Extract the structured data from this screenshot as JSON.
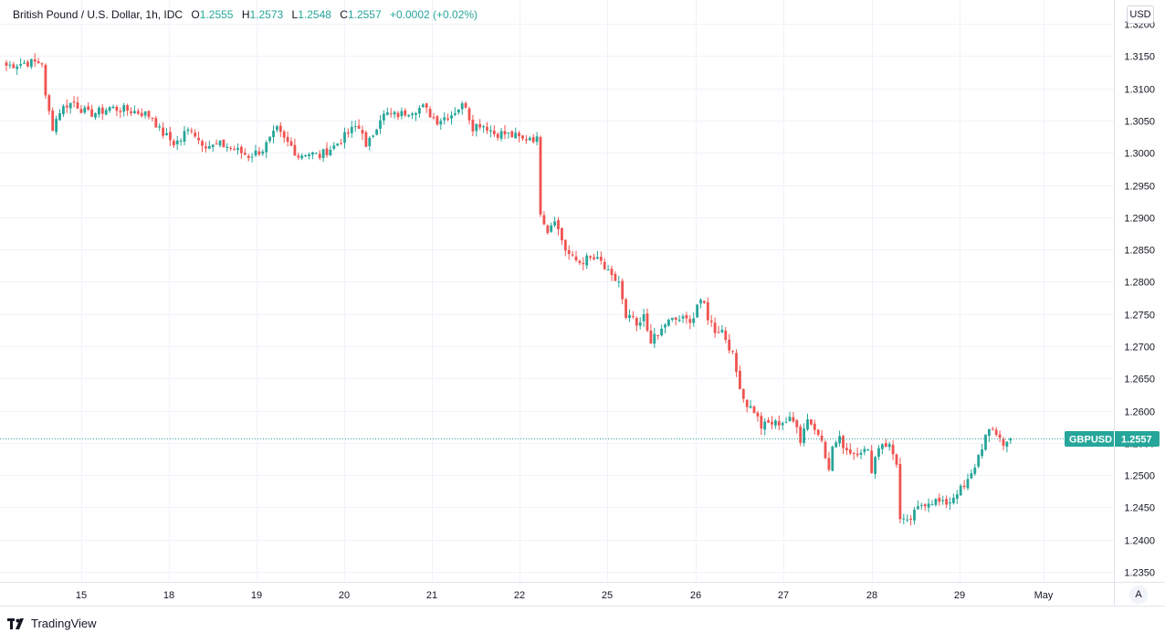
{
  "legend": {
    "symbol": "British Pound / U.S. Dollar, 1h, IDC",
    "o_label": "O",
    "o_value": "1.2555",
    "h_label": "H",
    "h_value": "1.2573",
    "l_label": "L",
    "l_value": "1.2548",
    "c_label": "C",
    "c_value": "1.2557",
    "change": "+0.0002 (+0.02%)"
  },
  "currency_button": "USD",
  "auto_button": "A",
  "price_tag": {
    "symbol": "GBPUSD",
    "value": "1.2557"
  },
  "footer": {
    "brand": "TradingView",
    "logo_icon": "tradingview-logo-icon"
  },
  "colors": {
    "up": "#26a69a",
    "down": "#ef5350",
    "grid": "#f0f3fa",
    "tag_bg": "#26a69a"
  },
  "chart_data": {
    "type": "candlestick",
    "title": "British Pound / U.S. Dollar, 1h, IDC",
    "y_ticks": [
      "1.3200",
      "1.3150",
      "1.3100",
      "1.3050",
      "1.3000",
      "1.2950",
      "1.2900",
      "1.2850",
      "1.2800",
      "1.2750",
      "1.2700",
      "1.2650",
      "1.2600",
      "1.2550",
      "1.2500",
      "1.2450",
      "1.2400",
      "1.2350"
    ],
    "x_ticks": [
      "15",
      "18",
      "19",
      "20",
      "21",
      "22",
      "25",
      "26",
      "27",
      "28",
      "29",
      "May"
    ],
    "ylim": [
      1.2335,
      1.3225
    ],
    "close_path": [
      [
        0,
        1.3135
      ],
      [
        6,
        1.314
      ],
      [
        10,
        1.314
      ],
      [
        11,
        1.3085
      ],
      [
        13,
        1.304
      ],
      [
        15,
        1.3065
      ],
      [
        17,
        1.3075
      ],
      [
        19,
        1.3078
      ],
      [
        21,
        1.3068
      ],
      [
        23,
        1.306
      ],
      [
        25,
        1.3062
      ],
      [
        27,
        1.3065
      ],
      [
        29,
        1.307
      ],
      [
        31,
        1.3068
      ],
      [
        33,
        1.3067
      ],
      [
        35,
        1.3065
      ],
      [
        37,
        1.3063
      ],
      [
        39,
        1.306
      ],
      [
        41,
        1.3055
      ],
      [
        43,
        1.3035
      ],
      [
        45,
        1.3025
      ],
      [
        47,
        1.3015
      ],
      [
        49,
        1.302
      ],
      [
        50,
        1.303
      ],
      [
        52,
        1.3038
      ],
      [
        54,
        1.302
      ],
      [
        56,
        1.3013
      ],
      [
        58,
        1.301
      ],
      [
        60,
        1.3012
      ],
      [
        62,
        1.301
      ],
      [
        64,
        1.3005
      ],
      [
        66,
        1.3
      ],
      [
        68,
        1.2995
      ],
      [
        70,
        1.3
      ],
      [
        72,
        1.3005
      ],
      [
        74,
        1.302
      ],
      [
        76,
        1.3035
      ],
      [
        78,
        1.302
      ],
      [
        80,
        1.301
      ],
      [
        82,
        1.2995
      ],
      [
        84,
        1.3
      ],
      [
        86,
        1.2998
      ],
      [
        88,
        1.2995
      ],
      [
        90,
        1.3003
      ],
      [
        92,
        1.301
      ],
      [
        94,
        1.302
      ],
      [
        96,
        1.303
      ],
      [
        98,
        1.304
      ],
      [
        100,
        1.3035
      ],
      [
        101,
        1.3005
      ],
      [
        103,
        1.303
      ],
      [
        105,
        1.3055
      ],
      [
        107,
        1.306
      ],
      [
        109,
        1.3058
      ],
      [
        111,
        1.306
      ],
      [
        113,
        1.3065
      ],
      [
        115,
        1.3068
      ],
      [
        117,
        1.307
      ],
      [
        119,
        1.306
      ],
      [
        121,
        1.305
      ],
      [
        123,
        1.3055
      ],
      [
        125,
        1.306
      ],
      [
        127,
        1.307
      ],
      [
        129,
        1.3075
      ],
      [
        130,
        1.3055
      ],
      [
        131,
        1.304
      ],
      [
        133,
        1.3045
      ],
      [
        135,
        1.304
      ],
      [
        137,
        1.303
      ],
      [
        139,
        1.303
      ],
      [
        141,
        1.3028
      ],
      [
        143,
        1.3025
      ],
      [
        145,
        1.302
      ],
      [
        147,
        1.3025
      ],
      [
        149,
        1.302
      ],
      [
        149.5,
        1.2975
      ],
      [
        150,
        1.291
      ],
      [
        152,
        1.288
      ],
      [
        154,
        1.29
      ],
      [
        155,
        1.288
      ],
      [
        157,
        1.285
      ],
      [
        159,
        1.2835
      ],
      [
        161,
        1.283
      ],
      [
        163,
        1.2835
      ],
      [
        165,
        1.2835
      ],
      [
        167,
        1.283
      ],
      [
        168,
        1.282
      ],
      [
        170,
        1.2805
      ],
      [
        172,
        1.28
      ],
      [
        173,
        1.277
      ],
      [
        174,
        1.274
      ],
      [
        176,
        1.2745
      ],
      [
        177,
        1.2725
      ],
      [
        179,
        1.2745
      ],
      [
        180,
        1.2725
      ],
      [
        181,
        1.271
      ],
      [
        183,
        1.2715
      ],
      [
        185,
        1.2735
      ],
      [
        187,
        1.274
      ],
      [
        189,
        1.2742
      ],
      [
        191,
        1.274
      ],
      [
        193,
        1.2745
      ],
      [
        194,
        1.2765
      ],
      [
        196,
        1.2765
      ],
      [
        197,
        1.2745
      ],
      [
        199,
        1.2725
      ],
      [
        201,
        1.2725
      ],
      [
        203,
        1.27
      ],
      [
        204,
        1.2685
      ],
      [
        205,
        1.266
      ],
      [
        207,
        1.262
      ],
      [
        208,
        1.261
      ],
      [
        210,
        1.26
      ],
      [
        212,
        1.2575
      ],
      [
        214,
        1.258
      ],
      [
        216,
        1.258
      ],
      [
        218,
        1.2583
      ],
      [
        220,
        1.2585
      ],
      [
        222,
        1.258
      ],
      [
        223,
        1.2555
      ],
      [
        225,
        1.259
      ],
      [
        227,
        1.257
      ],
      [
        229,
        1.256
      ],
      [
        231,
        1.2505
      ],
      [
        232,
        1.2545
      ],
      [
        234,
        1.2555
      ],
      [
        236,
        1.254
      ],
      [
        238,
        1.2535
      ],
      [
        240,
        1.254
      ],
      [
        242,
        1.2535
      ],
      [
        243,
        1.251
      ],
      [
        245,
        1.2545
      ],
      [
        246,
        1.255
      ],
      [
        248,
        1.2545
      ],
      [
        250,
        1.252
      ],
      [
        251,
        1.243
      ],
      [
        253,
        1.2425
      ],
      [
        255,
        1.244
      ],
      [
        257,
        1.2455
      ],
      [
        259,
        1.246
      ],
      [
        261,
        1.246
      ],
      [
        263,
        1.2455
      ],
      [
        265,
        1.246
      ],
      [
        267,
        1.2475
      ],
      [
        269,
        1.248
      ],
      [
        271,
        1.25
      ],
      [
        273,
        1.253
      ],
      [
        275,
        1.256
      ],
      [
        277,
        1.257
      ],
      [
        279,
        1.256
      ],
      [
        280,
        1.2545
      ],
      [
        282,
        1.2557
      ]
    ],
    "last_price": 1.2557,
    "grid": true
  }
}
